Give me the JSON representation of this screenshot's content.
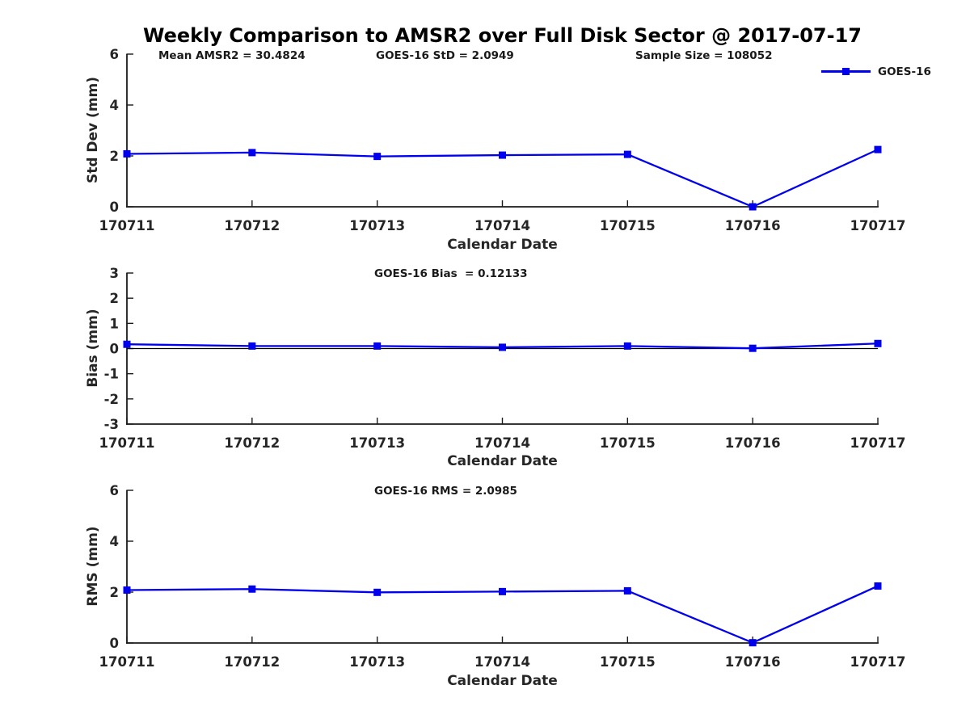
{
  "figure": {
    "title": "Weekly Comparison to AMSR2 over Full Disk Sector @ 2017-07-17",
    "background": "#ffffff",
    "accent_color": "#0000ee"
  },
  "legend": {
    "label": "GOES-16",
    "line_color": "#0000ee",
    "marker": "square",
    "position": "top-right"
  },
  "annotations": {
    "mean_amsr2": "Mean AMSR2 = 30.4824",
    "goes16_std": "GOES-16 StD = 2.0949",
    "sample_size": "Sample Size = 108052",
    "goes16_bias": "GOES-16 Bias  = 0.12133",
    "goes16_rms": "GOES-16 RMS = 2.0985"
  },
  "chart_data": [
    {
      "type": "line",
      "name": "std-dev",
      "title": "",
      "categories": [
        "170711",
        "170712",
        "170713",
        "170714",
        "170715",
        "170716",
        "170717"
      ],
      "series": [
        {
          "name": "GOES-16",
          "values": [
            2.08,
            2.13,
            1.98,
            2.03,
            2.06,
            0.0,
            2.25
          ]
        }
      ],
      "xlabel": "Calendar Date",
      "ylabel": "Std Dev (mm)",
      "ylim": [
        0,
        6
      ],
      "yticks": [
        0,
        2,
        4,
        6
      ],
      "grid": false,
      "zero_line": false,
      "line_color": "#0000ee",
      "marker": "square",
      "legend_position": "top-right"
    },
    {
      "type": "line",
      "name": "bias",
      "title": "GOES-16 Bias  = 0.12133",
      "categories": [
        "170711",
        "170712",
        "170713",
        "170714",
        "170715",
        "170716",
        "170717"
      ],
      "series": [
        {
          "name": "GOES-16",
          "values": [
            0.17,
            0.1,
            0.1,
            0.05,
            0.1,
            0.01,
            0.2
          ]
        }
      ],
      "xlabel": "Calendar Date",
      "ylabel": "Bias (mm)",
      "ylim": [
        -3,
        3
      ],
      "yticks": [
        3,
        2,
        1,
        0,
        -1,
        -2,
        -3
      ],
      "grid": false,
      "zero_line": true,
      "line_color": "#0000ee",
      "marker": "square",
      "legend_position": "none"
    },
    {
      "type": "line",
      "name": "rms",
      "title": "GOES-16 RMS = 2.0985",
      "categories": [
        "170711",
        "170712",
        "170713",
        "170714",
        "170715",
        "170716",
        "170717"
      ],
      "series": [
        {
          "name": "GOES-16",
          "values": [
            2.08,
            2.12,
            1.99,
            2.02,
            2.05,
            0.01,
            2.24
          ]
        }
      ],
      "xlabel": "Calendar Date",
      "ylabel": "RMS (mm)",
      "ylim": [
        0,
        6
      ],
      "yticks": [
        0,
        2,
        4,
        6
      ],
      "grid": false,
      "zero_line": false,
      "line_color": "#0000ee",
      "marker": "square",
      "legend_position": "none"
    }
  ]
}
